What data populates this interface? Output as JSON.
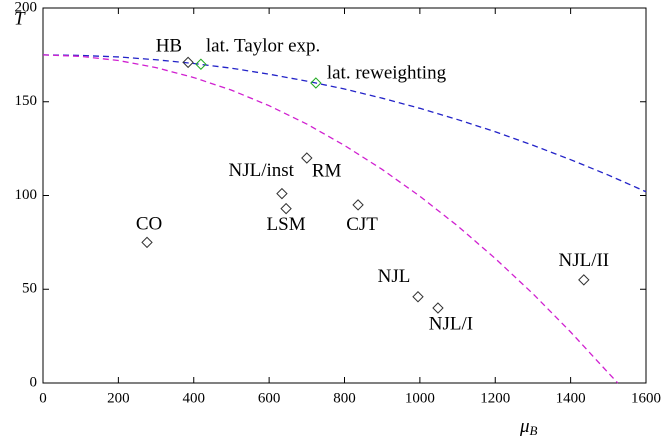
{
  "chart_data": {
    "type": "scatter",
    "ylabel": "T",
    "xlabel": "μ",
    "xlabel_sub": "B",
    "xlim": [
      0,
      1600
    ],
    "ylim": [
      0,
      200
    ],
    "xticks": [
      0,
      200,
      400,
      600,
      800,
      1000,
      1200,
      1400,
      1600
    ],
    "yticks": [
      0,
      50,
      100,
      150,
      200
    ],
    "lines": [
      {
        "color": "#2323c8",
        "x": [
          0,
          100,
          200,
          300,
          400,
          500,
          600,
          700,
          800,
          900,
          1000,
          1100,
          1200,
          1300,
          1400,
          1500,
          1600
        ],
        "values": [
          175,
          174.7,
          173.9,
          172.4,
          170.4,
          167.9,
          164.7,
          161.0,
          156.8,
          151.9,
          146.5,
          140.5,
          134.0,
          126.8,
          119.1,
          110.9,
          102.0
        ]
      },
      {
        "color": "#d020d0",
        "x": [
          0,
          100,
          200,
          300,
          400,
          500,
          600,
          700,
          800,
          900,
          1000,
          1100,
          1200,
          1300,
          1400,
          1500,
          1525
        ],
        "values": [
          175,
          174.2,
          172.0,
          168.2,
          162.9,
          156.2,
          147.9,
          138.1,
          126.7,
          113.9,
          99.6,
          83.8,
          66.4,
          47.6,
          27.2,
          5.4,
          0
        ]
      }
    ],
    "points": [
      {
        "label": "HB",
        "x": 385,
        "y": 171,
        "color": "#000000"
      },
      {
        "label": "lat. Taylor exp.",
        "x": 419,
        "y": 170,
        "color": "#22aa22"
      },
      {
        "label": "lat. reweighting",
        "x": 724,
        "y": 160,
        "color": "#22aa22"
      },
      {
        "label": "RM",
        "x": 700,
        "y": 120,
        "color": "#000000"
      },
      {
        "label": "NJL/inst",
        "x": 634,
        "y": 101,
        "color": "#000000"
      },
      {
        "label": "LSM",
        "x": 645,
        "y": 93,
        "color": "#000000"
      },
      {
        "label": "CO",
        "x": 276,
        "y": 75,
        "color": "#000000"
      },
      {
        "label": "CJT",
        "x": 836,
        "y": 95,
        "color": "#000000"
      },
      {
        "label": "NJL",
        "x": 995,
        "y": 46,
        "color": "#000000"
      },
      {
        "label": "NJL/I",
        "x": 1048,
        "y": 40,
        "color": "#000000"
      },
      {
        "label": "NJL/II",
        "x": 1435,
        "y": 55,
        "color": "#000000"
      }
    ]
  }
}
